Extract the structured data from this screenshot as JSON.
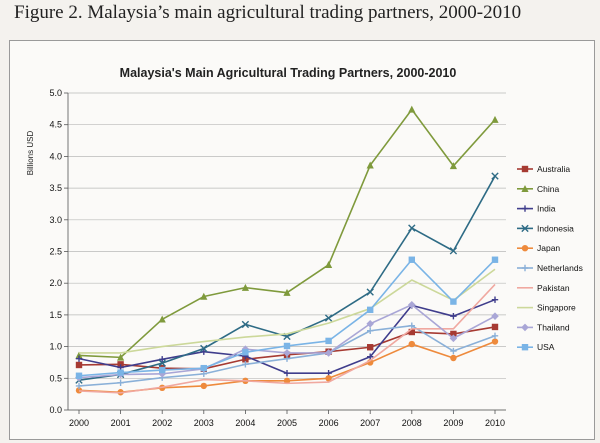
{
  "caption": "Figure 2. Malaysia’s main agricultural trading partners, 2000-2010",
  "chart_data": {
    "type": "line",
    "title": "Malaysia's Main Agricultural Trading Partners, 2000-2010",
    "xlabel": "",
    "ylabel": "Billions USD",
    "ylim": [
      0,
      5
    ],
    "yticks": [
      "0.0",
      "0.5",
      "1.0",
      "1.5",
      "2.0",
      "2.5",
      "3.0",
      "3.5",
      "4.0",
      "4.5",
      "5.0"
    ],
    "grid": true,
    "legend": "right",
    "categories": [
      "2000",
      "2001",
      "2002",
      "2003",
      "2004",
      "2005",
      "2006",
      "2007",
      "2008",
      "2009",
      "2010"
    ],
    "series": [
      {
        "name": "Australia",
        "color": "#a63a32",
        "marker": "square",
        "values": [
          0.71,
          0.72,
          0.66,
          0.65,
          0.8,
          0.87,
          0.92,
          0.99,
          1.23,
          1.2,
          1.31
        ]
      },
      {
        "name": "China",
        "color": "#7f9a3c",
        "marker": "triangle",
        "values": [
          0.86,
          0.83,
          1.43,
          1.79,
          1.93,
          1.85,
          2.29,
          3.86,
          4.74,
          3.85,
          4.58
        ]
      },
      {
        "name": "India",
        "color": "#3f3d8c",
        "marker": "plus",
        "values": [
          0.81,
          0.67,
          0.8,
          0.92,
          0.85,
          0.58,
          0.58,
          0.84,
          1.65,
          1.48,
          1.74
        ]
      },
      {
        "name": "Indonesia",
        "color": "#2e6b85",
        "marker": "x",
        "values": [
          0.47,
          0.56,
          0.74,
          0.97,
          1.35,
          1.16,
          1.45,
          1.86,
          2.87,
          2.51,
          3.69
        ]
      },
      {
        "name": "Japan",
        "color": "#ee8a3c",
        "marker": "circle",
        "values": [
          0.31,
          0.28,
          0.35,
          0.38,
          0.46,
          0.46,
          0.5,
          0.75,
          1.04,
          0.82,
          1.08
        ]
      },
      {
        "name": "Netherlands",
        "color": "#8ab0d8",
        "marker": "plus",
        "values": [
          0.38,
          0.43,
          0.51,
          0.57,
          0.72,
          0.81,
          0.9,
          1.25,
          1.33,
          0.93,
          1.17
        ]
      },
      {
        "name": "Pakistan",
        "color": "#f0a8a0",
        "marker": "none",
        "values": [
          0.3,
          0.27,
          0.36,
          0.48,
          0.46,
          0.42,
          0.44,
          0.78,
          1.28,
          1.28,
          1.98
        ]
      },
      {
        "name": "Singapore",
        "color": "#ccd89a",
        "marker": "none",
        "values": [
          0.9,
          0.9,
          1.0,
          1.08,
          1.15,
          1.2,
          1.37,
          1.6,
          2.05,
          1.73,
          2.22
        ]
      },
      {
        "name": "Thailand",
        "color": "#a9a6d6",
        "marker": "diamond",
        "values": [
          0.51,
          0.56,
          0.57,
          0.65,
          0.96,
          0.9,
          0.9,
          1.36,
          1.66,
          1.13,
          1.48
        ]
      },
      {
        "name": "USA",
        "color": "#7ab4e6",
        "marker": "square",
        "values": [
          0.54,
          0.59,
          0.63,
          0.66,
          0.91,
          1.01,
          1.09,
          1.58,
          2.37,
          1.71,
          2.37
        ]
      }
    ]
  }
}
